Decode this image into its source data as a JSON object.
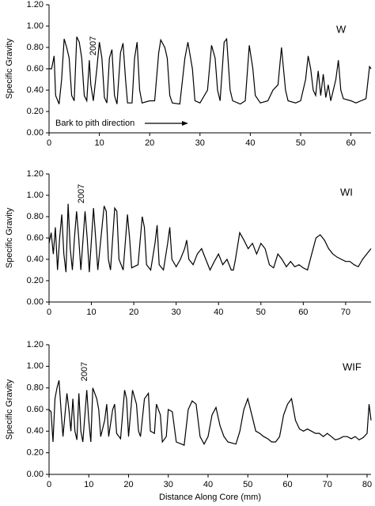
{
  "chart_data": [
    {
      "type": "line",
      "label": "W",
      "annotation": "2007",
      "note": "Bark to pith direction",
      "ylabel": "Specific Gravity",
      "xlim": [
        0,
        64
      ],
      "xticks": [
        0,
        10,
        20,
        30,
        40,
        50,
        60
      ],
      "ylim": [
        0,
        1.2
      ],
      "yticks": [
        {
          "value": 0,
          "label": "0.00"
        },
        {
          "value": 0.2,
          "label": "0.20"
        },
        {
          "value": 0.4,
          "label": "0.40"
        },
        {
          "value": 0.6,
          "label": "0.60"
        },
        {
          "value": 0.8,
          "label": "0.80"
        },
        {
          "value": 1,
          "label": "1.00"
        },
        {
          "value": 1.2,
          "label": "1.20"
        }
      ],
      "color": "#000000",
      "x": [
        0,
        0.5,
        1,
        1.3,
        2,
        2.5,
        3,
        3.5,
        4,
        4.5,
        5,
        5.5,
        6,
        6.5,
        7,
        7.5,
        8,
        8.3,
        8.8,
        9.5,
        10,
        10.5,
        11,
        11.5,
        12,
        12.5,
        13,
        13.5,
        14.2,
        14.7,
        15.2,
        15.6,
        16.5,
        17,
        17.5,
        18,
        18.5,
        20,
        21,
        21.8,
        22.2,
        23,
        23.5,
        24,
        24.5,
        26,
        27,
        27.6,
        28.5,
        29,
        30,
        31.5,
        32.3,
        33,
        33.5,
        34,
        34.8,
        35.3,
        36,
        36.5,
        38,
        39,
        39.8,
        40.5,
        41,
        42,
        43.5,
        44.5,
        45.5,
        46.2,
        47,
        47.5,
        49,
        50,
        51,
        51.5,
        52,
        52.5,
        53,
        53.5,
        54,
        54.5,
        55,
        55.5,
        56,
        57,
        57.5,
        58,
        58.5,
        60,
        61,
        62,
        63,
        63.7,
        64
      ],
      "values": [
        0.6,
        0.6,
        0.72,
        0.35,
        0.27,
        0.5,
        0.88,
        0.8,
        0.7,
        0.35,
        0.3,
        0.9,
        0.85,
        0.7,
        0.35,
        0.3,
        0.68,
        0.45,
        0.3,
        0.6,
        0.85,
        0.7,
        0.33,
        0.28,
        0.7,
        0.78,
        0.35,
        0.27,
        0.75,
        0.84,
        0.5,
        0.28,
        0.28,
        0.7,
        0.85,
        0.4,
        0.28,
        0.3,
        0.3,
        0.75,
        0.87,
        0.8,
        0.7,
        0.35,
        0.28,
        0.27,
        0.7,
        0.85,
        0.6,
        0.3,
        0.28,
        0.4,
        0.82,
        0.7,
        0.4,
        0.3,
        0.85,
        0.88,
        0.4,
        0.3,
        0.27,
        0.3,
        0.82,
        0.6,
        0.35,
        0.28,
        0.3,
        0.4,
        0.45,
        0.8,
        0.4,
        0.3,
        0.28,
        0.3,
        0.5,
        0.72,
        0.6,
        0.4,
        0.35,
        0.58,
        0.35,
        0.55,
        0.33,
        0.45,
        0.3,
        0.5,
        0.68,
        0.4,
        0.32,
        0.3,
        0.28,
        0.3,
        0.32,
        0.62,
        0.6
      ]
    },
    {
      "type": "line",
      "label": "WI",
      "annotation": "2007",
      "ylabel": "Specific Gravity",
      "xlim": [
        0,
        76
      ],
      "xticks": [
        0,
        10,
        20,
        30,
        40,
        50,
        60,
        70
      ],
      "ylim": [
        0,
        1.2
      ],
      "yticks": [
        {
          "value": 0,
          "label": "0.00"
        },
        {
          "value": 0.2,
          "label": "0.20"
        },
        {
          "value": 0.4,
          "label": "0.40"
        },
        {
          "value": 0.6,
          "label": "0.60"
        },
        {
          "value": 0.8,
          "label": "0.80"
        },
        {
          "value": 1,
          "label": "1.00"
        },
        {
          "value": 1.2,
          "label": "1.20"
        }
      ],
      "color": "#000000",
      "x": [
        0,
        0.5,
        1,
        1.5,
        2,
        2.5,
        3,
        3.5,
        4,
        4.5,
        5,
        5.5,
        6,
        6.5,
        7,
        7.5,
        8.5,
        9,
        9.5,
        10.5,
        11,
        11.5,
        13,
        13.5,
        14,
        14.5,
        15.5,
        16,
        16.5,
        17.5,
        18.5,
        19,
        19.5,
        21,
        22,
        22.5,
        23,
        24,
        25,
        25.5,
        26,
        27,
        28,
        28.5,
        29,
        30,
        31,
        32,
        32.5,
        33,
        34,
        35,
        36,
        37,
        38,
        39,
        40,
        41,
        42,
        43,
        43.5,
        44,
        45,
        46,
        47,
        48,
        49,
        50,
        51,
        52,
        53,
        54,
        55,
        56,
        57,
        58,
        59,
        60,
        61,
        62,
        63,
        64,
        65,
        66,
        67,
        68,
        69,
        70,
        71,
        72,
        73,
        74,
        75,
        76
      ],
      "values": [
        0.55,
        0.65,
        0.45,
        0.7,
        0.3,
        0.6,
        0.82,
        0.45,
        0.28,
        0.92,
        0.5,
        0.3,
        0.6,
        0.85,
        0.6,
        0.3,
        0.85,
        0.6,
        0.28,
        0.88,
        0.6,
        0.3,
        0.9,
        0.85,
        0.4,
        0.3,
        0.88,
        0.85,
        0.4,
        0.3,
        0.82,
        0.6,
        0.32,
        0.35,
        0.8,
        0.7,
        0.35,
        0.3,
        0.55,
        0.72,
        0.35,
        0.3,
        0.55,
        0.7,
        0.4,
        0.33,
        0.4,
        0.5,
        0.58,
        0.4,
        0.35,
        0.45,
        0.5,
        0.4,
        0.3,
        0.38,
        0.45,
        0.35,
        0.4,
        0.3,
        0.3,
        0.4,
        0.65,
        0.58,
        0.5,
        0.55,
        0.45,
        0.55,
        0.5,
        0.35,
        0.32,
        0.45,
        0.4,
        0.33,
        0.38,
        0.33,
        0.35,
        0.32,
        0.3,
        0.45,
        0.6,
        0.63,
        0.58,
        0.5,
        0.45,
        0.42,
        0.4,
        0.38,
        0.38,
        0.35,
        0.33,
        0.4,
        0.45,
        0.5
      ]
    },
    {
      "type": "line",
      "label": "WIF",
      "annotation": "2007",
      "ylabel": "Specific Gravity",
      "xlabel": "Distance Along Core (mm)",
      "xlim": [
        0,
        81
      ],
      "xticks": [
        0,
        10,
        20,
        30,
        40,
        50,
        60,
        70,
        80
      ],
      "ylim": [
        0,
        1.2
      ],
      "yticks": [
        {
          "value": 0,
          "label": "0.00"
        },
        {
          "value": 0.2,
          "label": "0.20"
        },
        {
          "value": 0.4,
          "label": "0.40"
        },
        {
          "value": 0.6,
          "label": "0.60"
        },
        {
          "value": 0.8,
          "label": "0.80"
        },
        {
          "value": 1,
          "label": "1.00"
        },
        {
          "value": 1.2,
          "label": "1.20"
        }
      ],
      "color": "#000000",
      "x": [
        0,
        0.5,
        1,
        1.5,
        2,
        2.5,
        3,
        3.5,
        4,
        4.5,
        5,
        5.5,
        6,
        6.5,
        7,
        7.5,
        8,
        8.5,
        9.5,
        10,
        10.5,
        11,
        11.5,
        12,
        12.5,
        13,
        14,
        14.5,
        15,
        16,
        16.5,
        17,
        18,
        19,
        19.5,
        20,
        21,
        22,
        22.5,
        23,
        24,
        25,
        25.5,
        26.5,
        27,
        28,
        28.5,
        29.5,
        30,
        31,
        32,
        34,
        35,
        36,
        37,
        38,
        39,
        40,
        41,
        42,
        43,
        44,
        45,
        47,
        48,
        49,
        50,
        51,
        52,
        53,
        54,
        55,
        56,
        57,
        58,
        59,
        60,
        61,
        62,
        63,
        64,
        65,
        66,
        67,
        68,
        69,
        70,
        71,
        72,
        73,
        74,
        75,
        76,
        77,
        78,
        79,
        80,
        80.5,
        81
      ],
      "values": [
        0.6,
        0.58,
        0.3,
        0.7,
        0.8,
        0.87,
        0.6,
        0.35,
        0.55,
        0.75,
        0.6,
        0.4,
        0.7,
        0.4,
        0.32,
        0.75,
        0.4,
        0.3,
        0.78,
        0.5,
        0.3,
        0.8,
        0.75,
        0.7,
        0.6,
        0.35,
        0.5,
        0.65,
        0.35,
        0.6,
        0.65,
        0.38,
        0.33,
        0.78,
        0.7,
        0.35,
        0.78,
        0.65,
        0.4,
        0.35,
        0.7,
        0.75,
        0.4,
        0.38,
        0.65,
        0.55,
        0.3,
        0.35,
        0.6,
        0.58,
        0.3,
        0.27,
        0.6,
        0.68,
        0.65,
        0.35,
        0.28,
        0.35,
        0.55,
        0.62,
        0.45,
        0.35,
        0.3,
        0.28,
        0.4,
        0.6,
        0.7,
        0.55,
        0.4,
        0.38,
        0.35,
        0.33,
        0.3,
        0.3,
        0.35,
        0.55,
        0.65,
        0.7,
        0.5,
        0.42,
        0.4,
        0.42,
        0.4,
        0.38,
        0.38,
        0.35,
        0.38,
        0.35,
        0.32,
        0.33,
        0.35,
        0.35,
        0.33,
        0.35,
        0.32,
        0.34,
        0.38,
        0.65,
        0.5
      ]
    }
  ]
}
